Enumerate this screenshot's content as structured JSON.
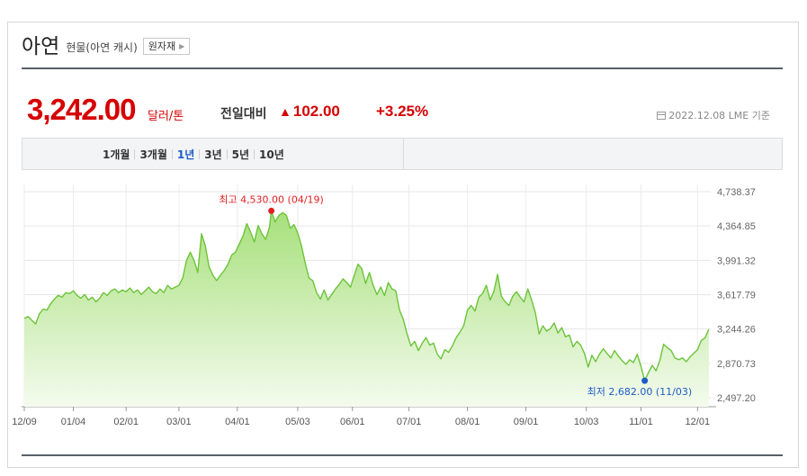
{
  "header": {
    "title": "아연",
    "subtitle": "현물(아연 캐시)",
    "ext_button": "원자재",
    "arrow_icon": "chevron-right-icon"
  },
  "price": {
    "value": "3,242.00",
    "unit": "달러/톤",
    "compare_label": "전일대비",
    "change_icon": "up-triangle-icon",
    "change": "102.00",
    "change_pct": "+3.25%",
    "as_of_icon": "calendar-icon",
    "as_of": "2022.12.08 LME 기준",
    "color_up": "#d60000"
  },
  "periods": {
    "items": [
      "1개월",
      "3개월",
      "1년",
      "3년",
      "5년",
      "10년"
    ],
    "active": "1년",
    "active_color": "#1d5cc9"
  },
  "chart_data": {
    "type": "area",
    "y_ticks": [
      "4,738.37",
      "4,364.85",
      "3,991.32",
      "3,617.79",
      "3,244.26",
      "2,870.73",
      "2,497.20"
    ],
    "y_tick_values": [
      4738.37,
      4364.85,
      3991.32,
      3617.79,
      3244.26,
      2870.73,
      2497.2
    ],
    "x_ticks": [
      "12/09",
      "01/04",
      "02/01",
      "03/01",
      "04/01",
      "05/03",
      "06/01",
      "07/01",
      "08/01",
      "09/01",
      "10/03",
      "11/01",
      "12/01"
    ],
    "x_tick_days": [
      0,
      26,
      54,
      82,
      113,
      145,
      174,
      204,
      235,
      266,
      298,
      327,
      357
    ],
    "ylim": [
      2497.2,
      4738.37
    ],
    "xlim_days": [
      0,
      364
    ],
    "grid": true,
    "line_color": "#6cc43a",
    "fill_top": "#a7e07b",
    "fill_bottom": "#f4fbee",
    "high": {
      "label": "최고 4,530.00 (04/19)",
      "day": 131,
      "value": 4530.0,
      "color": "#e02020"
    },
    "low": {
      "label": "최저 2,682.00 (11/03)",
      "day": 329,
      "value": 2682.0,
      "color": "#1d5cc9"
    },
    "points": [
      [
        0,
        3360
      ],
      [
        2,
        3380
      ],
      [
        4,
        3340
      ],
      [
        6,
        3300
      ],
      [
        8,
        3410
      ],
      [
        10,
        3460
      ],
      [
        12,
        3450
      ],
      [
        14,
        3520
      ],
      [
        16,
        3570
      ],
      [
        18,
        3610
      ],
      [
        20,
        3590
      ],
      [
        22,
        3640
      ],
      [
        24,
        3630
      ],
      [
        26,
        3660
      ],
      [
        28,
        3610
      ],
      [
        30,
        3580
      ],
      [
        32,
        3620
      ],
      [
        34,
        3560
      ],
      [
        36,
        3590
      ],
      [
        38,
        3540
      ],
      [
        40,
        3580
      ],
      [
        42,
        3640
      ],
      [
        44,
        3610
      ],
      [
        46,
        3660
      ],
      [
        48,
        3680
      ],
      [
        50,
        3640
      ],
      [
        52,
        3670
      ],
      [
        54,
        3650
      ],
      [
        56,
        3690
      ],
      [
        58,
        3640
      ],
      [
        60,
        3670
      ],
      [
        62,
        3620
      ],
      [
        64,
        3660
      ],
      [
        66,
        3700
      ],
      [
        68,
        3650
      ],
      [
        70,
        3630
      ],
      [
        72,
        3680
      ],
      [
        74,
        3640
      ],
      [
        76,
        3720
      ],
      [
        78,
        3680
      ],
      [
        80,
        3700
      ],
      [
        82,
        3720
      ],
      [
        84,
        3800
      ],
      [
        86,
        3990
      ],
      [
        88,
        4080
      ],
      [
        90,
        3990
      ],
      [
        92,
        3860
      ],
      [
        94,
        4280
      ],
      [
        96,
        4150
      ],
      [
        98,
        3920
      ],
      [
        100,
        3830
      ],
      [
        102,
        3770
      ],
      [
        104,
        3830
      ],
      [
        106,
        3880
      ],
      [
        108,
        3950
      ],
      [
        110,
        4050
      ],
      [
        112,
        4080
      ],
      [
        114,
        4170
      ],
      [
        116,
        4260
      ],
      [
        118,
        4390
      ],
      [
        120,
        4300
      ],
      [
        122,
        4190
      ],
      [
        124,
        4370
      ],
      [
        126,
        4280
      ],
      [
        128,
        4220
      ],
      [
        130,
        4350
      ],
      [
        131,
        4530
      ],
      [
        133,
        4410
      ],
      [
        135,
        4480
      ],
      [
        137,
        4510
      ],
      [
        139,
        4480
      ],
      [
        141,
        4340
      ],
      [
        143,
        4380
      ],
      [
        145,
        4290
      ],
      [
        147,
        4150
      ],
      [
        149,
        3960
      ],
      [
        151,
        3800
      ],
      [
        153,
        3770
      ],
      [
        155,
        3640
      ],
      [
        157,
        3570
      ],
      [
        159,
        3670
      ],
      [
        161,
        3560
      ],
      [
        163,
        3620
      ],
      [
        165,
        3680
      ],
      [
        167,
        3730
      ],
      [
        169,
        3790
      ],
      [
        171,
        3750
      ],
      [
        173,
        3700
      ],
      [
        175,
        3830
      ],
      [
        177,
        3950
      ],
      [
        179,
        3900
      ],
      [
        181,
        3740
      ],
      [
        183,
        3860
      ],
      [
        185,
        3720
      ],
      [
        187,
        3620
      ],
      [
        189,
        3700
      ],
      [
        191,
        3610
      ],
      [
        193,
        3750
      ],
      [
        195,
        3680
      ],
      [
        197,
        3660
      ],
      [
        199,
        3450
      ],
      [
        201,
        3350
      ],
      [
        203,
        3190
      ],
      [
        205,
        3060
      ],
      [
        207,
        3110
      ],
      [
        209,
        3010
      ],
      [
        211,
        3090
      ],
      [
        213,
        3150
      ],
      [
        215,
        3070
      ],
      [
        217,
        3090
      ],
      [
        219,
        2970
      ],
      [
        221,
        2920
      ],
      [
        223,
        3020
      ],
      [
        225,
        2990
      ],
      [
        227,
        3060
      ],
      [
        229,
        3150
      ],
      [
        231,
        3210
      ],
      [
        233,
        3280
      ],
      [
        235,
        3450
      ],
      [
        237,
        3500
      ],
      [
        239,
        3440
      ],
      [
        241,
        3590
      ],
      [
        243,
        3630
      ],
      [
        245,
        3720
      ],
      [
        247,
        3560
      ],
      [
        249,
        3650
      ],
      [
        251,
        3840
      ],
      [
        253,
        3600
      ],
      [
        255,
        3540
      ],
      [
        257,
        3500
      ],
      [
        259,
        3600
      ],
      [
        261,
        3650
      ],
      [
        263,
        3590
      ],
      [
        265,
        3540
      ],
      [
        267,
        3680
      ],
      [
        269,
        3560
      ],
      [
        271,
        3420
      ],
      [
        273,
        3190
      ],
      [
        275,
        3280
      ],
      [
        277,
        3220
      ],
      [
        279,
        3250
      ],
      [
        281,
        3310
      ],
      [
        283,
        3200
      ],
      [
        285,
        3260
      ],
      [
        287,
        3160
      ],
      [
        289,
        3180
      ],
      [
        291,
        3050
      ],
      [
        293,
        3110
      ],
      [
        295,
        3070
      ],
      [
        297,
        2980
      ],
      [
        299,
        2830
      ],
      [
        301,
        2960
      ],
      [
        303,
        2890
      ],
      [
        305,
        2970
      ],
      [
        307,
        3030
      ],
      [
        309,
        2980
      ],
      [
        311,
        2930
      ],
      [
        313,
        3010
      ],
      [
        315,
        2950
      ],
      [
        317,
        2900
      ],
      [
        319,
        2860
      ],
      [
        321,
        2910
      ],
      [
        323,
        2880
      ],
      [
        325,
        2970
      ],
      [
        327,
        2840
      ],
      [
        329,
        2682
      ],
      [
        331,
        2770
      ],
      [
        333,
        2850
      ],
      [
        335,
        2790
      ],
      [
        337,
        2900
      ],
      [
        339,
        3080
      ],
      [
        341,
        3040
      ],
      [
        343,
        3010
      ],
      [
        345,
        2930
      ],
      [
        347,
        2910
      ],
      [
        349,
        2930
      ],
      [
        351,
        2890
      ],
      [
        353,
        2940
      ],
      [
        355,
        2980
      ],
      [
        357,
        3020
      ],
      [
        359,
        3120
      ],
      [
        361,
        3150
      ],
      [
        363,
        3242
      ]
    ]
  }
}
